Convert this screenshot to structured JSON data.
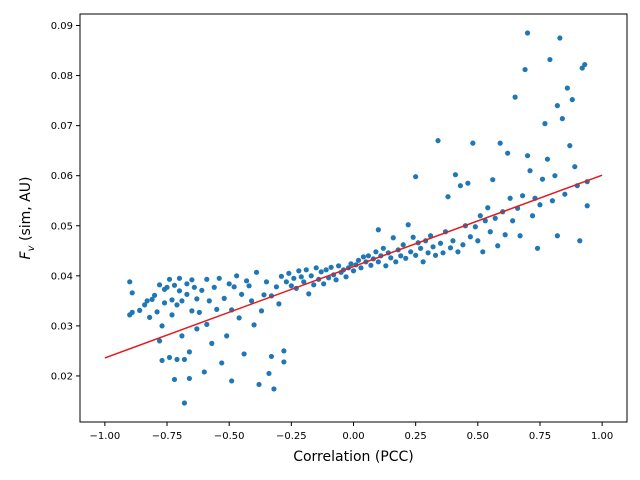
{
  "chart_data": {
    "type": "scatter",
    "title": "",
    "xlabel": "Correlation (PCC)",
    "ylabel_main": "F",
    "ylabel_sub": "v",
    "ylabel_rest": " (sim, AU)",
    "xlim": [
      -1.1,
      1.1
    ],
    "ylim": [
      0.0108,
      0.0923
    ],
    "xticks": [
      -1.0,
      -0.75,
      -0.5,
      -0.25,
      0.0,
      0.25,
      0.5,
      0.75,
      1.0
    ],
    "xtick_labels": [
      "−1.00",
      "−0.75",
      "−0.50",
      "−0.25",
      "0.00",
      "0.25",
      "0.50",
      "0.75",
      "1.00"
    ],
    "yticks": [
      0.02,
      0.03,
      0.04,
      0.05,
      0.06,
      0.07,
      0.08,
      0.09
    ],
    "ytick_labels": [
      "0.02",
      "0.03",
      "0.04",
      "0.05",
      "0.06",
      "0.07",
      "0.08",
      "0.09"
    ],
    "grid": false,
    "colors": {
      "points": "#1f77b4",
      "fit": "#e31a1c"
    },
    "fit_line": {
      "x": [
        -1.0,
        1.0
      ],
      "y": [
        0.0236,
        0.0601
      ]
    },
    "series": [
      {
        "points": [
          [
            -0.9,
            0.0388
          ],
          [
            -0.89,
            0.0366
          ],
          [
            -0.9,
            0.0322
          ],
          [
            -0.89,
            0.0327
          ],
          [
            -0.86,
            0.0331
          ],
          [
            -0.84,
            0.0342
          ],
          [
            -0.83,
            0.035
          ],
          [
            -0.82,
            0.0317
          ],
          [
            -0.81,
            0.0353
          ],
          [
            -0.8,
            0.0361
          ],
          [
            -0.79,
            0.0328
          ],
          [
            -0.78,
            0.027
          ],
          [
            -0.78,
            0.0382
          ],
          [
            -0.77,
            0.0231
          ],
          [
            -0.77,
            0.03
          ],
          [
            -0.76,
            0.0346
          ],
          [
            -0.76,
            0.0373
          ],
          [
            -0.75,
            0.0377
          ],
          [
            -0.74,
            0.0393
          ],
          [
            -0.74,
            0.0237
          ],
          [
            -0.73,
            0.0352
          ],
          [
            -0.73,
            0.0322
          ],
          [
            -0.72,
            0.0381
          ],
          [
            -0.72,
            0.0193
          ],
          [
            -0.71,
            0.0233
          ],
          [
            -0.71,
            0.0342
          ],
          [
            -0.7,
            0.037
          ],
          [
            -0.7,
            0.0395
          ],
          [
            -0.69,
            0.028
          ],
          [
            -0.69,
            0.035
          ],
          [
            -0.68,
            0.0146
          ],
          [
            -0.68,
            0.0233
          ],
          [
            -0.67,
            0.0384
          ],
          [
            -0.67,
            0.0363
          ],
          [
            -0.66,
            0.0195
          ],
          [
            -0.66,
            0.0248
          ],
          [
            -0.65,
            0.0392
          ],
          [
            -0.65,
            0.033
          ],
          [
            -0.64,
            0.0377
          ],
          [
            -0.63,
            0.0294
          ],
          [
            -0.63,
            0.0354
          ],
          [
            -0.62,
            0.0327
          ],
          [
            -0.61,
            0.0371
          ],
          [
            -0.6,
            0.0208
          ],
          [
            -0.59,
            0.0393
          ],
          [
            -0.59,
            0.0303
          ],
          [
            -0.58,
            0.035
          ],
          [
            -0.57,
            0.0265
          ],
          [
            -0.56,
            0.0377
          ],
          [
            -0.55,
            0.0333
          ],
          [
            -0.54,
            0.0395
          ],
          [
            -0.53,
            0.0226
          ],
          [
            -0.52,
            0.0355
          ],
          [
            -0.51,
            0.028
          ],
          [
            -0.5,
            0.0384
          ],
          [
            -0.49,
            0.019
          ],
          [
            -0.49,
            0.0332
          ],
          [
            -0.48,
            0.0378
          ],
          [
            -0.47,
            0.04
          ],
          [
            -0.46,
            0.0316
          ],
          [
            -0.45,
            0.0363
          ],
          [
            -0.44,
            0.0244
          ],
          [
            -0.43,
            0.039
          ],
          [
            -0.42,
            0.038
          ],
          [
            -0.41,
            0.035
          ],
          [
            -0.4,
            0.0302
          ],
          [
            -0.39,
            0.0407
          ],
          [
            -0.38,
            0.0183
          ],
          [
            -0.37,
            0.033
          ],
          [
            -0.36,
            0.0362
          ],
          [
            -0.35,
            0.0388
          ],
          [
            -0.34,
            0.0205
          ],
          [
            -0.33,
            0.036
          ],
          [
            -0.33,
            0.0239
          ],
          [
            -0.32,
            0.0174
          ],
          [
            -0.31,
            0.0378
          ],
          [
            -0.3,
            0.0344
          ],
          [
            -0.29,
            0.0399
          ],
          [
            -0.28,
            0.0228
          ],
          [
            -0.28,
            0.025
          ],
          [
            -0.27,
            0.0388
          ],
          [
            -0.26,
            0.0405
          ],
          [
            -0.25,
            0.038
          ],
          [
            -0.24,
            0.0395
          ],
          [
            -0.23,
            0.0375
          ],
          [
            -0.22,
            0.041
          ],
          [
            -0.21,
            0.0398
          ],
          [
            -0.2,
            0.0388
          ],
          [
            -0.19,
            0.0412
          ],
          [
            -0.18,
            0.0364
          ],
          [
            -0.17,
            0.04
          ],
          [
            -0.16,
            0.0382
          ],
          [
            -0.15,
            0.0416
          ],
          [
            -0.14,
            0.0393
          ],
          [
            -0.13,
            0.0408
          ],
          [
            -0.12,
            0.0384
          ],
          [
            -0.11,
            0.0412
          ],
          [
            -0.1,
            0.0396
          ],
          [
            -0.09,
            0.0417
          ],
          [
            -0.08,
            0.0402
          ],
          [
            -0.07,
            0.0392
          ],
          [
            -0.06,
            0.042
          ],
          [
            -0.05,
            0.0407
          ],
          [
            -0.04,
            0.0412
          ],
          [
            -0.03,
            0.0398
          ],
          [
            -0.02,
            0.0416
          ],
          [
            -0.01,
            0.0424
          ],
          [
            0.0,
            0.041
          ],
          [
            0.01,
            0.0422
          ],
          [
            0.02,
            0.0431
          ],
          [
            0.03,
            0.0416
          ],
          [
            0.04,
            0.0438
          ],
          [
            0.05,
            0.0428
          ],
          [
            0.06,
            0.044
          ],
          [
            0.07,
            0.0421
          ],
          [
            0.08,
            0.0434
          ],
          [
            0.09,
            0.0448
          ],
          [
            0.1,
            0.0428
          ],
          [
            0.1,
            0.0492
          ],
          [
            0.11,
            0.044
          ],
          [
            0.12,
            0.0455
          ],
          [
            0.13,
            0.042
          ],
          [
            0.14,
            0.0446
          ],
          [
            0.15,
            0.0436
          ],
          [
            0.16,
            0.0476
          ],
          [
            0.17,
            0.0428
          ],
          [
            0.18,
            0.0452
          ],
          [
            0.19,
            0.044
          ],
          [
            0.2,
            0.0462
          ],
          [
            0.21,
            0.0435
          ],
          [
            0.22,
            0.0502
          ],
          [
            0.23,
            0.0448
          ],
          [
            0.24,
            0.0477
          ],
          [
            0.25,
            0.0598
          ],
          [
            0.25,
            0.0441
          ],
          [
            0.26,
            0.0466
          ],
          [
            0.27,
            0.0455
          ],
          [
            0.28,
            0.0428
          ],
          [
            0.29,
            0.047
          ],
          [
            0.3,
            0.0446
          ],
          [
            0.31,
            0.048
          ],
          [
            0.32,
            0.0458
          ],
          [
            0.33,
            0.0441
          ],
          [
            0.34,
            0.067
          ],
          [
            0.35,
            0.0465
          ],
          [
            0.36,
            0.0446
          ],
          [
            0.37,
            0.0488
          ],
          [
            0.38,
            0.0558
          ],
          [
            0.39,
            0.0456
          ],
          [
            0.4,
            0.047
          ],
          [
            0.41,
            0.0602
          ],
          [
            0.42,
            0.0448
          ],
          [
            0.43,
            0.058
          ],
          [
            0.44,
            0.0462
          ],
          [
            0.45,
            0.05
          ],
          [
            0.46,
            0.0585
          ],
          [
            0.47,
            0.0478
          ],
          [
            0.48,
            0.0665
          ],
          [
            0.49,
            0.0498
          ],
          [
            0.5,
            0.047
          ],
          [
            0.51,
            0.052
          ],
          [
            0.52,
            0.0448
          ],
          [
            0.53,
            0.051
          ],
          [
            0.54,
            0.0536
          ],
          [
            0.55,
            0.0488
          ],
          [
            0.56,
            0.0592
          ],
          [
            0.57,
            0.0515
          ],
          [
            0.58,
            0.046
          ],
          [
            0.59,
            0.0665
          ],
          [
            0.6,
            0.0528
          ],
          [
            0.61,
            0.0482
          ],
          [
            0.62,
            0.0645
          ],
          [
            0.63,
            0.0555
          ],
          [
            0.64,
            0.051
          ],
          [
            0.65,
            0.0757
          ],
          [
            0.66,
            0.0535
          ],
          [
            0.67,
            0.048
          ],
          [
            0.68,
            0.056
          ],
          [
            0.69,
            0.0812
          ],
          [
            0.7,
            0.0885
          ],
          [
            0.7,
            0.064
          ],
          [
            0.71,
            0.061
          ],
          [
            0.72,
            0.052
          ],
          [
            0.73,
            0.0555
          ],
          [
            0.74,
            0.0455
          ],
          [
            0.75,
            0.0542
          ],
          [
            0.76,
            0.0593
          ],
          [
            0.77,
            0.0704
          ],
          [
            0.78,
            0.0633
          ],
          [
            0.79,
            0.0832
          ],
          [
            0.8,
            0.055
          ],
          [
            0.81,
            0.06
          ],
          [
            0.82,
            0.074
          ],
          [
            0.82,
            0.048
          ],
          [
            0.83,
            0.0875
          ],
          [
            0.84,
            0.0714
          ],
          [
            0.85,
            0.0563
          ],
          [
            0.86,
            0.0775
          ],
          [
            0.87,
            0.066
          ],
          [
            0.88,
            0.0752
          ],
          [
            0.89,
            0.0618
          ],
          [
            0.9,
            0.058
          ],
          [
            0.91,
            0.047
          ],
          [
            0.92,
            0.0815
          ],
          [
            0.93,
            0.0822
          ],
          [
            0.94,
            0.0588
          ],
          [
            0.94,
            0.054
          ]
        ]
      }
    ]
  }
}
